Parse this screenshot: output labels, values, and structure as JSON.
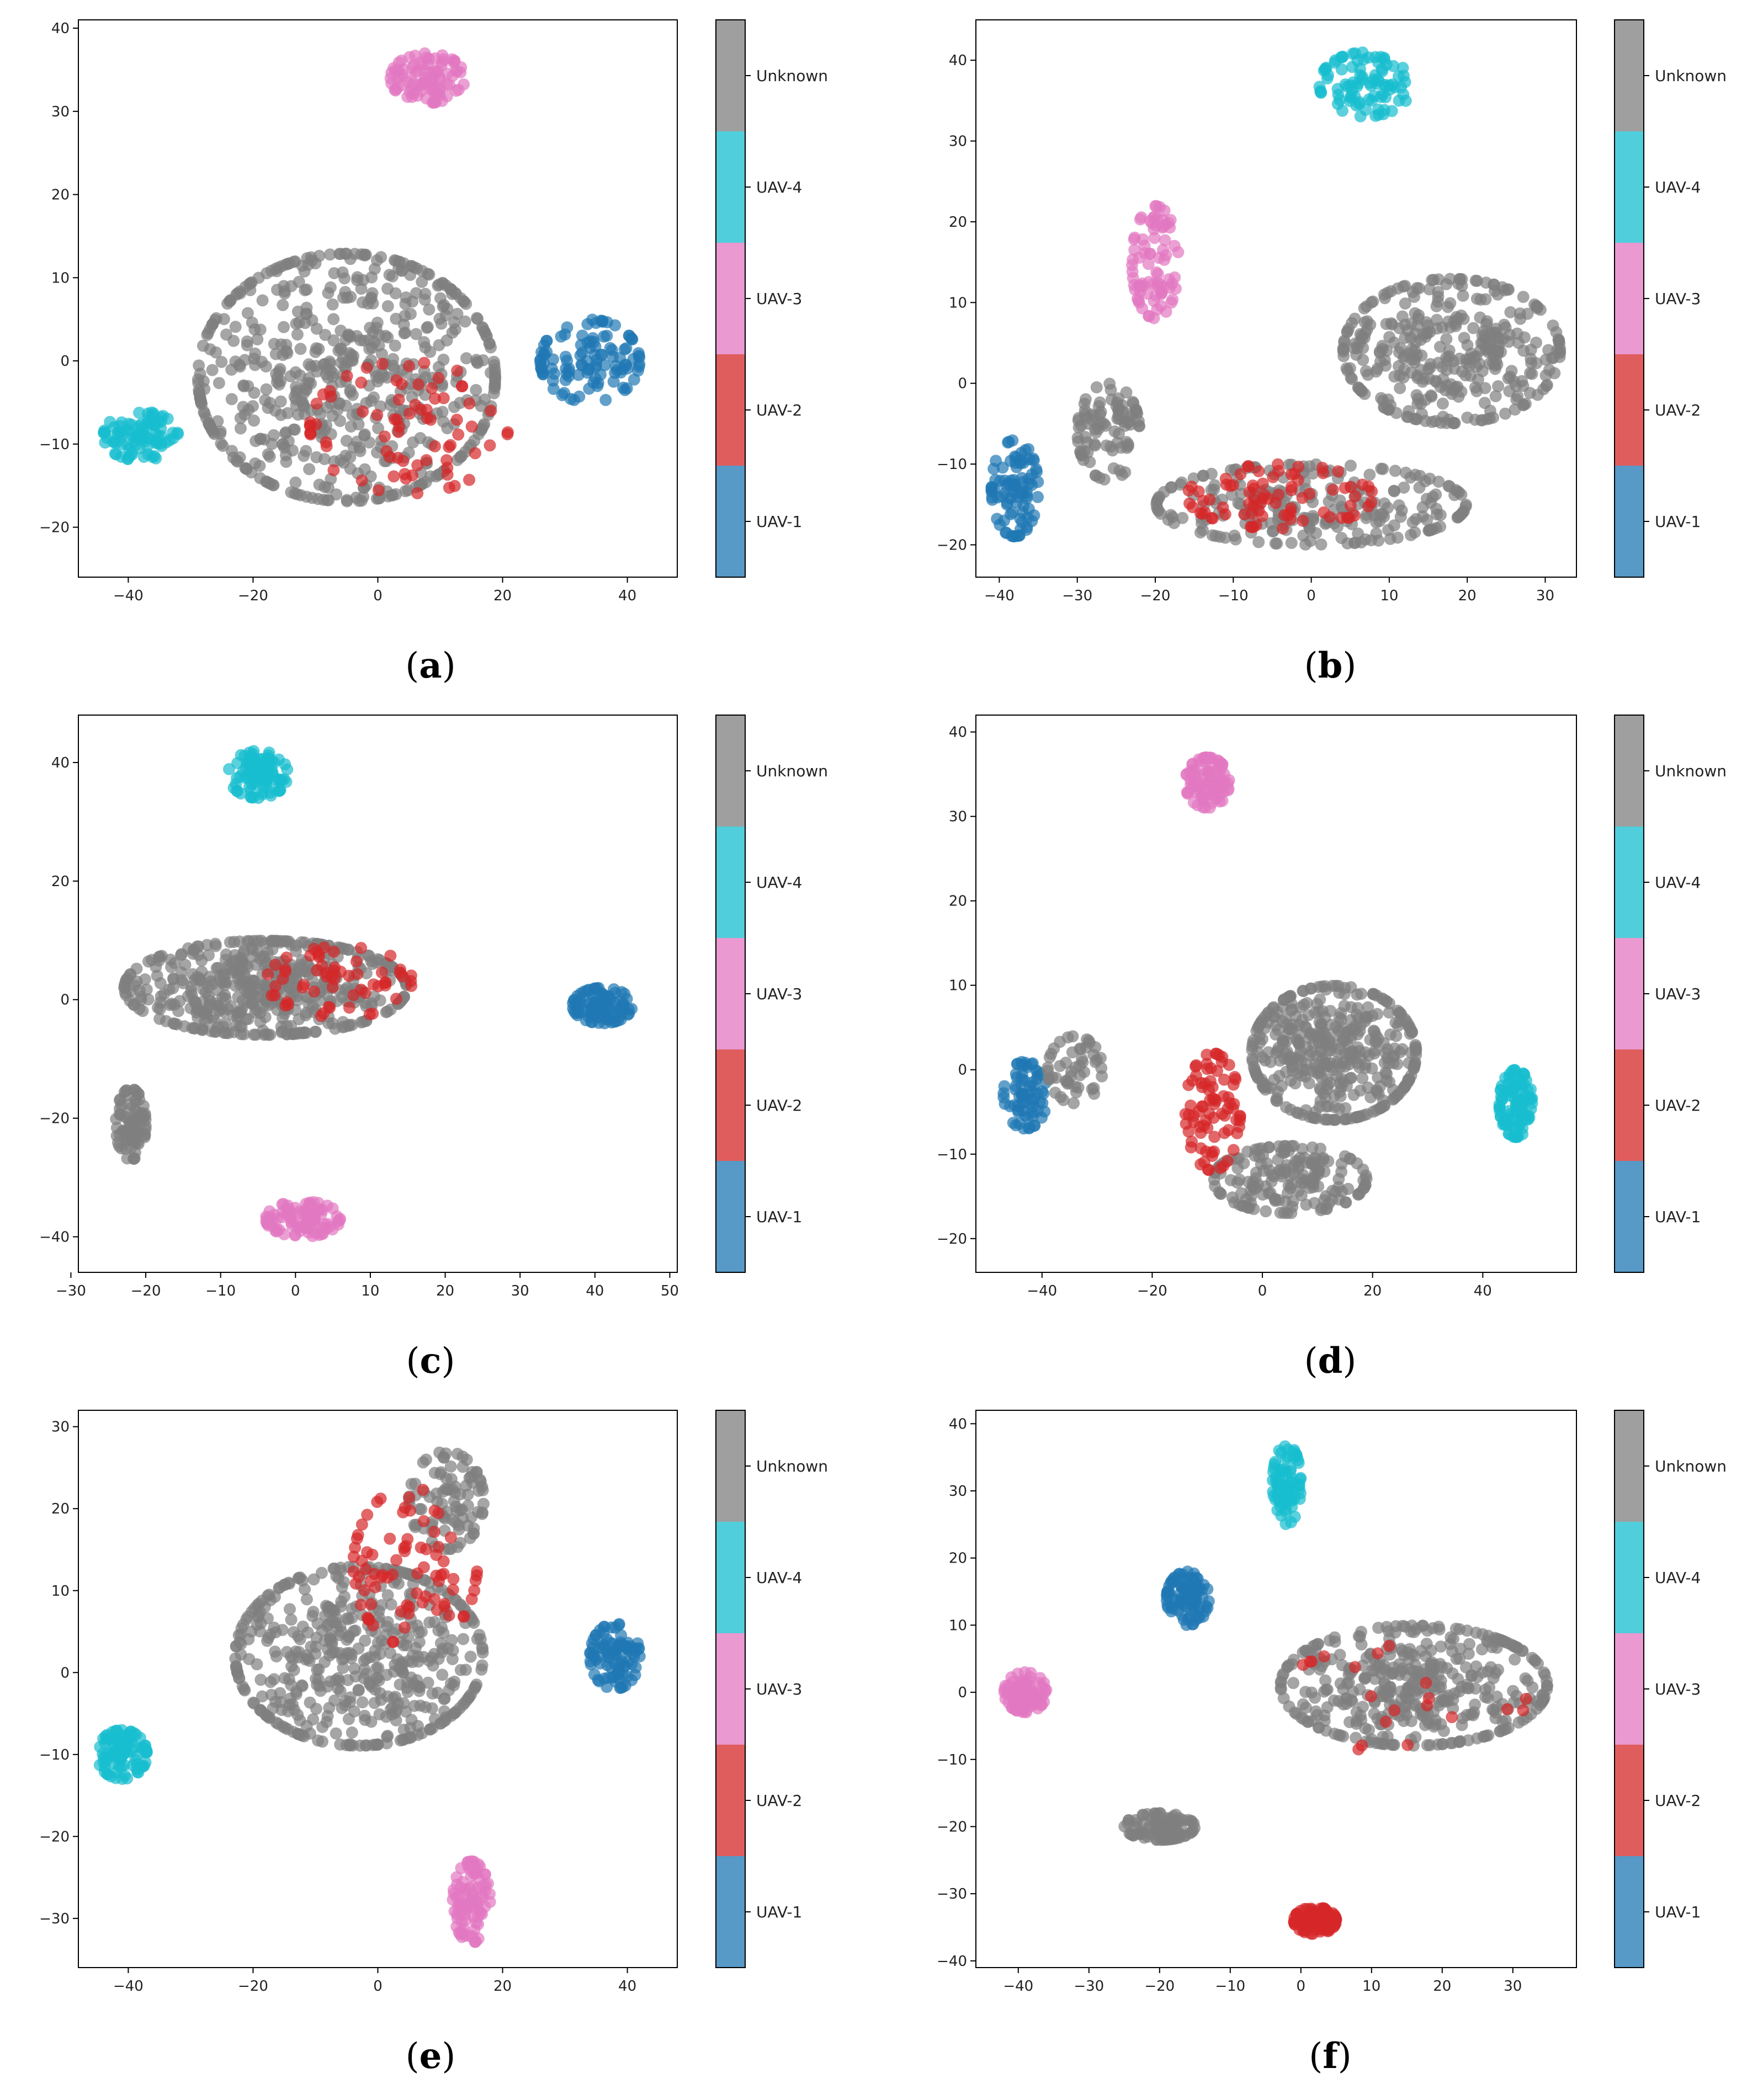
{
  "figure": {
    "colorbar_labels": [
      "UAV-1",
      "UAV-2",
      "UAV-3",
      "UAV-4",
      "Unknown"
    ],
    "colors": {
      "UAV-1": "#1f77b4",
      "UAV-2": "#d62728",
      "UAV-3": "#e377c2",
      "UAV-4": "#17becf",
      "Unknown": "#7f7f7f"
    }
  },
  "chart_data": [
    {
      "type": "scatter",
      "panel": "a",
      "xlim": [
        -48,
        48
      ],
      "ylim": [
        -26,
        41
      ],
      "xticks": [
        -40,
        -20,
        0,
        20,
        40
      ],
      "yticks": [
        -20,
        -10,
        0,
        10,
        20,
        30,
        40
      ],
      "clusters": [
        {
          "class": "UAV-3",
          "cx": 8,
          "cy": 34,
          "rx": 6,
          "ry": 3,
          "n": 90
        },
        {
          "class": "UAV-4",
          "cx": -38,
          "cy": -9,
          "rx": 6,
          "ry": 3,
          "n": 90
        },
        {
          "class": "UAV-1",
          "cx": 34,
          "cy": 0,
          "rx": 8,
          "ry": 5,
          "n": 110
        },
        {
          "class": "Unknown",
          "cx": -5,
          "cy": -2,
          "rx": 24,
          "ry": 15,
          "n": 620
        },
        {
          "class": "UAV-2",
          "cx": 5,
          "cy": -8,
          "rx": 16,
          "ry": 8,
          "n": 75
        }
      ]
    },
    {
      "type": "scatter",
      "panel": "b",
      "xlim": [
        -43,
        34
      ],
      "ylim": [
        -24,
        45
      ],
      "xticks": [
        -40,
        -30,
        -20,
        -10,
        0,
        10,
        20,
        30
      ],
      "yticks": [
        -20,
        -10,
        0,
        10,
        20,
        30,
        40
      ],
      "clusters": [
        {
          "class": "UAV-4",
          "cx": 7,
          "cy": 37,
          "rx": 6,
          "ry": 4,
          "n": 90
        },
        {
          "class": "UAV-3",
          "cx": -20,
          "cy": 15,
          "rx": 3,
          "ry": 7,
          "n": 80
        },
        {
          "class": "UAV-1",
          "cx": -38,
          "cy": -13,
          "rx": 3,
          "ry": 6,
          "n": 90
        },
        {
          "class": "Unknown",
          "cx": 18,
          "cy": 4,
          "rx": 14,
          "ry": 9,
          "n": 360
        },
        {
          "class": "Unknown",
          "cx": 0,
          "cy": -15,
          "rx": 20,
          "ry": 5,
          "n": 250
        },
        {
          "class": "Unknown",
          "cx": -26,
          "cy": -6,
          "rx": 4,
          "ry": 6,
          "n": 90
        },
        {
          "class": "UAV-2",
          "cx": -4,
          "cy": -14,
          "rx": 12,
          "ry": 4,
          "n": 80
        }
      ]
    },
    {
      "type": "scatter",
      "panel": "c",
      "xlim": [
        -29,
        51
      ],
      "ylim": [
        -46,
        48
      ],
      "xticks": [
        -30,
        -20,
        -10,
        0,
        10,
        20,
        30,
        40,
        50
      ],
      "yticks": [
        -40,
        -20,
        0,
        20,
        40
      ],
      "clusters": [
        {
          "class": "UAV-4",
          "cx": -5,
          "cy": 38,
          "rx": 4,
          "ry": 4,
          "n": 90
        },
        {
          "class": "UAV-1",
          "cx": 41,
          "cy": -1,
          "rx": 4,
          "ry": 3,
          "n": 90
        },
        {
          "class": "UAV-3",
          "cx": 1,
          "cy": -37,
          "rx": 5,
          "ry": 3,
          "n": 90
        },
        {
          "class": "Unknown",
          "cx": -22,
          "cy": -21,
          "rx": 2,
          "ry": 6,
          "n": 80
        },
        {
          "class": "Unknown",
          "cx": -4,
          "cy": 2,
          "rx": 19,
          "ry": 8,
          "n": 500
        },
        {
          "class": "UAV-2",
          "cx": 6,
          "cy": 3,
          "rx": 10,
          "ry": 6,
          "n": 60
        }
      ]
    },
    {
      "type": "scatter",
      "panel": "d",
      "xlim": [
        -52,
        57
      ],
      "ylim": [
        -24,
        42
      ],
      "xticks": [
        -40,
        -20,
        0,
        20,
        40
      ],
      "yticks": [
        -20,
        -10,
        0,
        10,
        20,
        30,
        40
      ],
      "clusters": [
        {
          "class": "UAV-3",
          "cx": -10,
          "cy": 34,
          "rx": 4,
          "ry": 3,
          "n": 90
        },
        {
          "class": "UAV-4",
          "cx": 46,
          "cy": -4,
          "rx": 3,
          "ry": 4,
          "n": 90
        },
        {
          "class": "UAV-1",
          "cx": -43,
          "cy": -3,
          "rx": 4,
          "ry": 4,
          "n": 70
        },
        {
          "class": "Unknown",
          "cx": -34,
          "cy": 0,
          "rx": 5,
          "ry": 4,
          "n": 50
        },
        {
          "class": "Unknown",
          "cx": 13,
          "cy": 2,
          "rx": 15,
          "ry": 8,
          "n": 420
        },
        {
          "class": "Unknown",
          "cx": 5,
          "cy": -13,
          "rx": 14,
          "ry": 4,
          "n": 180
        },
        {
          "class": "UAV-2",
          "cx": -9,
          "cy": -5,
          "rx": 5,
          "ry": 7,
          "n": 80
        }
      ]
    },
    {
      "type": "scatter",
      "panel": "e",
      "xlim": [
        -48,
        48
      ],
      "ylim": [
        -36,
        32
      ],
      "xticks": [
        -40,
        -20,
        0,
        20,
        40
      ],
      "yticks": [
        -30,
        -20,
        -10,
        0,
        10,
        20,
        30
      ],
      "clusters": [
        {
          "class": "UAV-4",
          "cx": -41,
          "cy": -10,
          "rx": 4,
          "ry": 3,
          "n": 90
        },
        {
          "class": "UAV-1",
          "cx": 38,
          "cy": 2,
          "rx": 4,
          "ry": 4,
          "n": 90
        },
        {
          "class": "UAV-3",
          "cx": 15,
          "cy": -28,
          "rx": 3,
          "ry": 5,
          "n": 90
        },
        {
          "class": "Unknown",
          "cx": -3,
          "cy": 2,
          "rx": 20,
          "ry": 11,
          "n": 500
        },
        {
          "class": "Unknown",
          "cx": 11,
          "cy": 21,
          "rx": 6,
          "ry": 6,
          "n": 90
        },
        {
          "class": "UAV-2",
          "cx": 6,
          "cy": 13,
          "rx": 10,
          "ry": 10,
          "n": 80
        }
      ]
    },
    {
      "type": "scatter",
      "panel": "f",
      "xlim": [
        -46,
        39
      ],
      "ylim": [
        -41,
        42
      ],
      "xticks": [
        -40,
        -30,
        -20,
        -10,
        0,
        10,
        20,
        30
      ],
      "yticks": [
        -40,
        -30,
        -20,
        -10,
        0,
        10,
        20,
        30,
        40
      ],
      "clusters": [
        {
          "class": "UAV-4",
          "cx": -2,
          "cy": 31,
          "rx": 2,
          "ry": 6,
          "n": 80
        },
        {
          "class": "UAV-1",
          "cx": -16,
          "cy": 14,
          "rx": 3,
          "ry": 4,
          "n": 90
        },
        {
          "class": "UAV-3",
          "cx": -39,
          "cy": 0,
          "rx": 3,
          "ry": 3,
          "n": 90
        },
        {
          "class": "UAV-2",
          "cx": 2,
          "cy": -34,
          "rx": 3,
          "ry": 2,
          "n": 90
        },
        {
          "class": "Unknown",
          "cx": -20,
          "cy": -20,
          "rx": 5,
          "ry": 2,
          "n": 100
        },
        {
          "class": "Unknown",
          "cx": 16,
          "cy": 1,
          "rx": 19,
          "ry": 9,
          "n": 420
        },
        {
          "class": "UAV-2",
          "cx": 14,
          "cy": -1,
          "rx": 18,
          "ry": 8,
          "n": 20
        }
      ]
    }
  ],
  "captions": [
    {
      "letter": "a"
    },
    {
      "letter": "b"
    },
    {
      "letter": "c"
    },
    {
      "letter": "d"
    },
    {
      "letter": "e"
    },
    {
      "letter": "f"
    }
  ]
}
